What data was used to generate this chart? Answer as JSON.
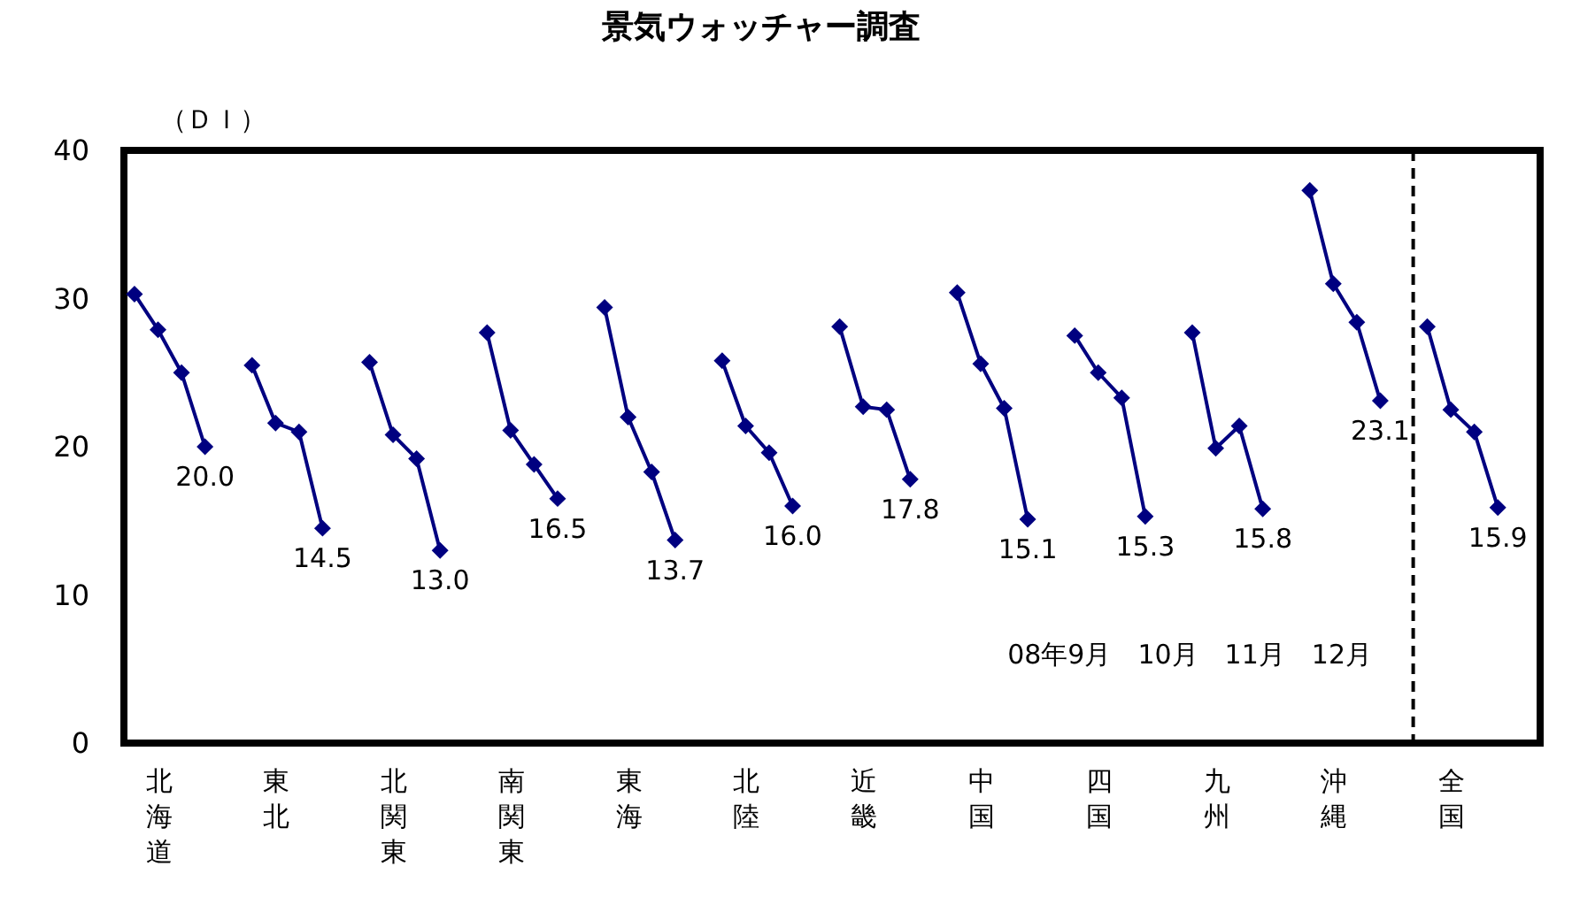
{
  "chart_data": {
    "type": "line",
    "title": "景気ウォッチャー調査",
    "ylabel": "（ＤＩ）",
    "categories": [
      null,
      "北海道",
      null,
      null,
      null,
      null,
      "東北",
      null,
      null,
      null,
      null,
      "北関東",
      null,
      null,
      null,
      null,
      "南関東",
      null,
      null,
      null,
      null,
      "東海",
      null,
      null,
      null,
      null,
      "北陸",
      null,
      null,
      null,
      null,
      "近畿",
      null,
      null,
      null,
      null,
      "中国",
      null,
      null,
      null,
      null,
      "四国",
      null,
      null,
      null,
      null,
      "九州",
      null,
      null,
      null,
      null,
      "沖縄",
      null,
      null,
      null,
      null,
      "全国",
      null,
      null
    ],
    "ylim": [
      0,
      40
    ],
    "yticks": [
      0,
      10,
      20,
      30,
      40
    ],
    "grid": false,
    "marker": "diamond",
    "line_style": "solid",
    "series": [
      {
        "color": "#000080",
        "values": [
          30.3,
          27.9,
          25.0,
          20.0,
          null,
          25.5,
          21.6,
          21.0,
          14.5,
          null,
          25.7,
          20.8,
          19.2,
          13.0,
          null,
          27.7,
          21.1,
          18.8,
          16.5,
          null,
          29.4,
          22.0,
          18.3,
          13.7,
          null,
          25.8,
          21.4,
          19.6,
          16.0,
          null,
          28.1,
          22.7,
          22.5,
          17.8,
          null,
          30.4,
          25.6,
          22.6,
          15.1,
          null,
          27.5,
          25.0,
          23.3,
          15.3,
          null,
          27.7,
          19.9,
          21.4,
          15.8,
          null,
          37.3,
          31.0,
          28.4,
          23.1,
          null,
          28.1,
          22.5,
          21.0,
          15.9
        ],
        "value_labels": [
          null,
          null,
          null,
          "20.0",
          null,
          null,
          null,
          null,
          "14.5",
          null,
          null,
          null,
          null,
          "13.0",
          null,
          null,
          null,
          null,
          "16.5",
          null,
          null,
          null,
          null,
          "13.7",
          null,
          null,
          null,
          null,
          "16.0",
          null,
          null,
          null,
          null,
          "17.8",
          null,
          null,
          null,
          null,
          "15.1",
          null,
          null,
          null,
          null,
          "15.3",
          null,
          null,
          null,
          null,
          "15.8",
          null,
          null,
          null,
          null,
          "23.1",
          null,
          null,
          null,
          null,
          "15.9"
        ]
      }
    ],
    "annotations": [
      "08年9月　10月　11月　12月"
    ]
  }
}
